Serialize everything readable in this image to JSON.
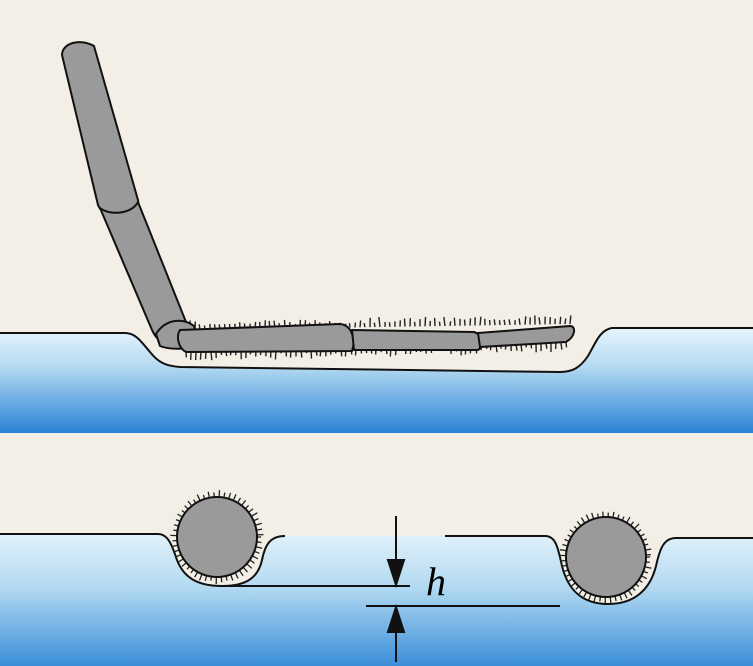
{
  "figure": {
    "labels": {
      "depth": "h"
    },
    "colors": {
      "paper": "#f3efe6",
      "water_top": "#ddeff8",
      "water_mid": "#a9d6ef",
      "water_bottom": "#2e86d8",
      "leg": "#999999",
      "outline": "#111111"
    }
  }
}
